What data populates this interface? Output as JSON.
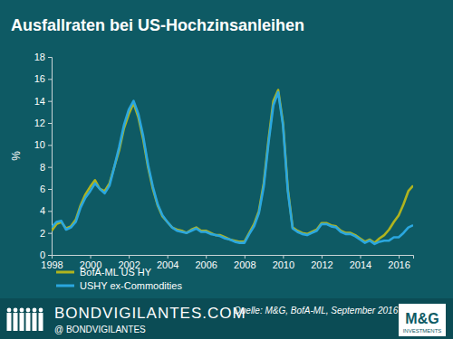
{
  "chart_data": {
    "type": "line",
    "title": "Ausfallraten bei US-Hochzinsanleihen",
    "y_label": "%",
    "x": [
      1998,
      1998.25,
      1998.5,
      1998.75,
      1999,
      1999.25,
      1999.5,
      1999.75,
      2000,
      2000.25,
      2000.5,
      2000.75,
      2001,
      2001.25,
      2001.5,
      2001.75,
      2002,
      2002.25,
      2002.5,
      2002.75,
      2003,
      2003.25,
      2003.5,
      2003.75,
      2004,
      2004.25,
      2004.5,
      2004.75,
      2005,
      2005.25,
      2005.5,
      2005.75,
      2006,
      2006.25,
      2006.5,
      2006.75,
      2007,
      2007.25,
      2007.5,
      2007.75,
      2008,
      2008.25,
      2008.5,
      2008.75,
      2009,
      2009.25,
      2009.5,
      2009.75,
      2010,
      2010.25,
      2010.5,
      2010.75,
      2011,
      2011.25,
      2011.5,
      2011.75,
      2012,
      2012.25,
      2012.5,
      2012.75,
      2013,
      2013.25,
      2013.5,
      2013.75,
      2014,
      2014.25,
      2014.5,
      2014.75,
      2015,
      2015.25,
      2015.5,
      2015.75,
      2016,
      2016.25,
      2016.5,
      2016.75
    ],
    "series": [
      {
        "name": "BofA-ML US HY",
        "color": "#b0b41e",
        "values": [
          2.2,
          2.8,
          3.0,
          2.4,
          2.6,
          3.2,
          4.5,
          5.5,
          6.2,
          6.8,
          6.0,
          5.8,
          6.5,
          8.0,
          9.5,
          11.5,
          12.8,
          13.8,
          12.5,
          10.5,
          8.0,
          6.0,
          4.5,
          3.5,
          3.0,
          2.5,
          2.3,
          2.2,
          2.0,
          2.3,
          2.5,
          2.2,
          2.2,
          2.0,
          1.8,
          1.8,
          1.6,
          1.4,
          1.3,
          1.2,
          1.2,
          2.0,
          2.8,
          4.0,
          6.5,
          10.5,
          14.0,
          15.0,
          12.0,
          6.0,
          2.5,
          2.2,
          2.0,
          1.9,
          2.1,
          2.3,
          2.9,
          2.9,
          2.7,
          2.6,
          2.2,
          2.0,
          2.0,
          1.8,
          1.5,
          1.2,
          1.4,
          1.1,
          1.5,
          1.8,
          2.3,
          3.0,
          3.6,
          4.6,
          5.8,
          6.3
        ]
      },
      {
        "name": "USHY ex-Commodities",
        "color": "#2aa7df",
        "values": [
          2.5,
          3.0,
          3.1,
          2.3,
          2.5,
          3.0,
          4.3,
          5.2,
          5.8,
          6.5,
          6.0,
          5.6,
          6.3,
          8.0,
          9.8,
          11.8,
          13.2,
          14.0,
          12.8,
          10.8,
          8.2,
          6.2,
          4.6,
          3.6,
          3.0,
          2.5,
          2.2,
          2.1,
          2.0,
          2.2,
          2.4,
          2.1,
          2.1,
          1.9,
          1.8,
          1.7,
          1.5,
          1.4,
          1.2,
          1.1,
          1.1,
          1.9,
          2.6,
          3.8,
          6.2,
          10.2,
          13.6,
          14.8,
          11.8,
          5.8,
          2.4,
          2.1,
          1.9,
          1.8,
          2.0,
          2.2,
          2.8,
          2.8,
          2.6,
          2.5,
          2.1,
          1.9,
          1.9,
          1.7,
          1.4,
          1.1,
          1.3,
          1.0,
          1.2,
          1.3,
          1.3,
          1.6,
          1.6,
          2.0,
          2.5,
          2.7
        ]
      }
    ],
    "xlim": [
      1998,
      2016.75
    ],
    "xticks": [
      1998,
      2000,
      2002,
      2004,
      2006,
      2008,
      2010,
      2012,
      2014,
      2016
    ],
    "ylim": [
      0,
      18
    ],
    "yticks": [
      0,
      2,
      4,
      6,
      8,
      10,
      12,
      14,
      16,
      18
    ],
    "grid": false,
    "legend": "bottom-left",
    "annotations": [
      "BONDVIGILANTES.COM",
      "@ BONDVIGILANTES",
      "Quelle: M&G, BofA-ML, September 2016",
      "M&G",
      "INVESTMENTS"
    ]
  }
}
